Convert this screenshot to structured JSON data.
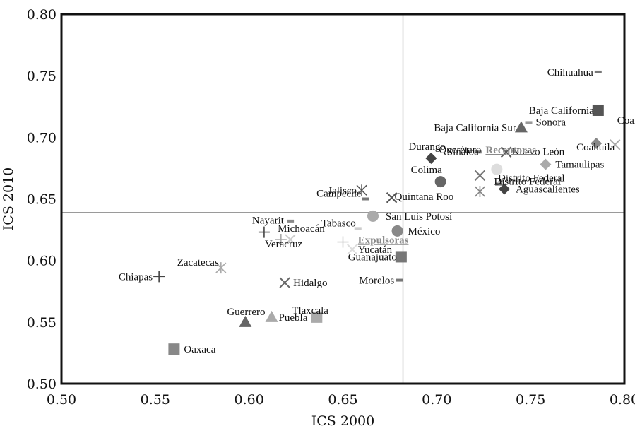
{
  "chart_data": {
    "type": "scatter",
    "title": "",
    "xlabel": "ICS 2000",
    "ylabel": "ICS 2010",
    "xlim": [
      0.5,
      0.8
    ],
    "ylim": [
      0.5,
      0.8
    ],
    "xticks": [
      "0.50",
      "0.55",
      "0.60",
      "0.65",
      "0.70",
      "0.75",
      "0.80"
    ],
    "yticks": [
      "0.50",
      "0.55",
      "0.60",
      "0.65",
      "0.70",
      "0.75",
      "0.80"
    ],
    "reference_lines": {
      "x": 0.682,
      "y": 0.639
    },
    "grid": false,
    "annotations": [
      {
        "text": "Receptoras",
        "x": 0.726,
        "y": 0.687
      },
      {
        "text": "Expulsoras",
        "x": 0.658,
        "y": 0.614
      }
    ],
    "points": [
      {
        "label": "Chihuahua",
        "x": 0.786,
        "y": 0.753,
        "marker": "dash",
        "color": "#777777"
      },
      {
        "label": "Baja California",
        "x": 0.786,
        "y": 0.722,
        "marker": "square",
        "color": "#555555"
      },
      {
        "label": "Baja California Sur",
        "x": 0.745,
        "y": 0.708,
        "marker": "triangle",
        "color": "#666666"
      },
      {
        "label": "Sonora",
        "x": 0.749,
        "y": 0.712,
        "marker": "dash",
        "color": "#999999"
      },
      {
        "label": "Coahuila",
        "x": 0.785,
        "y": 0.695,
        "marker": "diamond",
        "color": "#888888"
      },
      {
        "label": "Coahuila",
        "x": 0.795,
        "y": 0.694,
        "marker": "x",
        "color": "#aaaaaa"
      },
      {
        "label": "Nuevo León",
        "x": 0.737,
        "y": 0.688,
        "marker": "x",
        "color": "#555555"
      },
      {
        "label": "Sinaloa",
        "x": 0.722,
        "y": 0.688,
        "marker": "dash",
        "color": "#777777"
      },
      {
        "label": "Durango",
        "x": 0.697,
        "y": 0.683,
        "marker": "diamond",
        "color": "#444444"
      },
      {
        "label": "Querétaro",
        "x": 0.732,
        "y": 0.674,
        "marker": "circle",
        "color": "#dddddd"
      },
      {
        "label": "Colima",
        "x": 0.702,
        "y": 0.664,
        "marker": "circle",
        "color": "#666666"
      },
      {
        "label": "Tamaulipas",
        "x": 0.758,
        "y": 0.678,
        "marker": "diamond",
        "color": "#aaaaaa"
      },
      {
        "label": "Distrito Federal",
        "x": 0.723,
        "y": 0.669,
        "marker": "x",
        "color": "#777777"
      },
      {
        "label": "Distrito Federal",
        "x": 0.733,
        "y": 0.662,
        "marker": "dash",
        "color": "#666666"
      },
      {
        "label": "Aguascalientes",
        "x": 0.736,
        "y": 0.658,
        "marker": "diamond",
        "color": "#444444"
      },
      {
        "label": "",
        "x": 0.723,
        "y": 0.656,
        "marker": "asterisk",
        "color": "#888888"
      },
      {
        "label": "Jalisco",
        "x": 0.66,
        "y": 0.657,
        "marker": "asterisk",
        "color": "#555555"
      },
      {
        "label": "Campeche",
        "x": 0.662,
        "y": 0.65,
        "marker": "dash",
        "color": "#777777"
      },
      {
        "label": "Quintana Roo",
        "x": 0.676,
        "y": 0.651,
        "marker": "x",
        "color": "#555555"
      },
      {
        "label": "San Luis Potosí",
        "x": 0.666,
        "y": 0.636,
        "marker": "circle",
        "color": "#aaaaaa"
      },
      {
        "label": "México",
        "x": 0.679,
        "y": 0.624,
        "marker": "circle",
        "color": "#888888"
      },
      {
        "label": "Nayarit",
        "x": 0.608,
        "y": 0.623,
        "marker": "plus",
        "color": "#444444"
      },
      {
        "label": "",
        "x": 0.622,
        "y": 0.632,
        "marker": "dash",
        "color": "#888888"
      },
      {
        "label": "Michoacán",
        "x": 0.622,
        "y": 0.617,
        "marker": "x",
        "color": "#cccccc"
      },
      {
        "label": "Veracruz",
        "x": 0.617,
        "y": 0.617,
        "marker": "plus",
        "color": "#aaaaaa"
      },
      {
        "label": "Tabasco",
        "x": 0.658,
        "y": 0.626,
        "marker": "dash",
        "color": "#cccccc"
      },
      {
        "label": "",
        "x": 0.65,
        "y": 0.615,
        "marker": "plus",
        "color": "#cccccc"
      },
      {
        "label": "Yucatán",
        "x": 0.655,
        "y": 0.609,
        "marker": "x",
        "color": "#dddddd"
      },
      {
        "label": "Guanajuato",
        "x": 0.681,
        "y": 0.603,
        "marker": "square",
        "color": "#777777"
      },
      {
        "label": "Zacatecas",
        "x": 0.585,
        "y": 0.594,
        "marker": "asterisk",
        "color": "#aaaaaa"
      },
      {
        "label": "Chiapas",
        "x": 0.552,
        "y": 0.587,
        "marker": "plus",
        "color": "#444444"
      },
      {
        "label": "Hidalgo",
        "x": 0.619,
        "y": 0.582,
        "marker": "x",
        "color": "#666666"
      },
      {
        "label": "Morelos",
        "x": 0.68,
        "y": 0.584,
        "marker": "dash",
        "color": "#777777"
      },
      {
        "label": "Guerrero",
        "x": 0.598,
        "y": 0.55,
        "marker": "triangle",
        "color": "#666666"
      },
      {
        "label": "Puebla",
        "x": 0.612,
        "y": 0.554,
        "marker": "triangle",
        "color": "#aaaaaa"
      },
      {
        "label": "Tlaxcala",
        "x": 0.636,
        "y": 0.554,
        "marker": "square",
        "color": "#aaaaaa"
      },
      {
        "label": "Oaxaca",
        "x": 0.56,
        "y": 0.528,
        "marker": "square",
        "color": "#888888"
      }
    ]
  }
}
